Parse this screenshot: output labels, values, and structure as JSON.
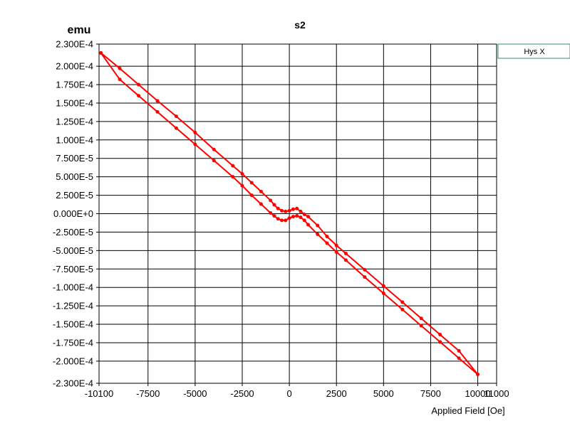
{
  "chart_data": {
    "type": "line",
    "title": "s2",
    "ylabel": "emu",
    "xlabel": "Applied Field [Oe]",
    "xlim": [
      -10100,
      11000
    ],
    "ylim": [
      -0.00023,
      0.00023
    ],
    "x_ticks": [
      -10100,
      -7500,
      -5000,
      -2500,
      0,
      2500,
      5000,
      7500,
      10000,
      11000
    ],
    "x_tick_labels": [
      "-10100",
      "-7500",
      "-5000",
      "-2500",
      "0",
      "2500",
      "5000",
      "7500",
      "10000",
      "11000"
    ],
    "y_ticks": [
      0.00023,
      0.0002,
      0.000175,
      0.00015,
      0.000125,
      0.0001,
      7.5e-05,
      5e-05,
      2.5e-05,
      0,
      -2.5e-05,
      -5e-05,
      -7.5e-05,
      -0.0001,
      -0.000125,
      -0.00015,
      -0.000175,
      -0.0002,
      -0.00023
    ],
    "y_tick_labels": [
      "2.300E-4",
      "2.000E-4",
      "1.750E-4",
      "1.500E-4",
      "1.250E-4",
      "1.000E-4",
      "7.500E-5",
      "5.000E-5",
      "2.500E-5",
      "0.000E+0",
      "-2.500E-5",
      "-5.000E-5",
      "-7.500E-5",
      "-1.000E-4",
      "-1.250E-4",
      "-1.500E-4",
      "-1.750E-4",
      "-2.000E-4",
      "-2.300E-4"
    ],
    "grid": true,
    "legend_position": "top-right",
    "series": [
      {
        "name": "Hys X",
        "color": "#ff0000",
        "x": [
          -10000,
          -9000,
          -8000,
          -7000,
          -6000,
          -5000,
          -4000,
          -3000,
          -2500,
          -2000,
          -1500,
          -1000,
          -800,
          -600,
          -400,
          -200,
          0,
          200,
          400,
          600,
          800,
          1000,
          1500,
          2000,
          2500,
          3000,
          4000,
          5000,
          6000,
          7000,
          8000,
          9000,
          10000,
          9000,
          8000,
          7000,
          6000,
          5000,
          4000,
          3000,
          2500,
          2000,
          1500,
          1000,
          800,
          600,
          400,
          200,
          0,
          -200,
          -400,
          -600,
          -800,
          -1000,
          -1500,
          -2000,
          -2500,
          -3000,
          -4000,
          -5000,
          -6000,
          -7000,
          -8000,
          -9000,
          -10000
        ],
        "y": [
          0.000218,
          0.000197,
          0.000175,
          0.000153,
          0.000132,
          0.00011,
          8.7e-05,
          6.5e-05,
          5.4e-05,
          4.2e-05,
          3e-05,
          1.8e-05,
          1.2e-05,
          7e-06,
          4e-06,
          3e-06,
          4e-06,
          6e-06,
          7e-06,
          3e-06,
          -1e-06,
          -4e-06,
          -1.6e-05,
          -3.1e-05,
          -4.3e-05,
          -5.4e-05,
          -7.6e-05,
          -9.8e-05,
          -0.00012,
          -0.000142,
          -0.000164,
          -0.000186,
          -0.000218,
          -0.000196,
          -0.000174,
          -0.000152,
          -0.00013,
          -0.000108,
          -8.6e-05,
          -6.3e-05,
          -5.2e-05,
          -4e-05,
          -2.8e-05,
          -1.5e-05,
          -9e-06,
          -5e-06,
          -3e-06,
          -4e-06,
          -6e-06,
          -9e-06,
          -9e-06,
          -7e-06,
          -3e-06,
          1e-06,
          1.3e-05,
          2.5e-05,
          3.8e-05,
          5e-05,
          7.2e-05,
          9.4e-05,
          0.000116,
          0.000138,
          0.00016,
          0.000182,
          0.000218
        ]
      }
    ]
  }
}
